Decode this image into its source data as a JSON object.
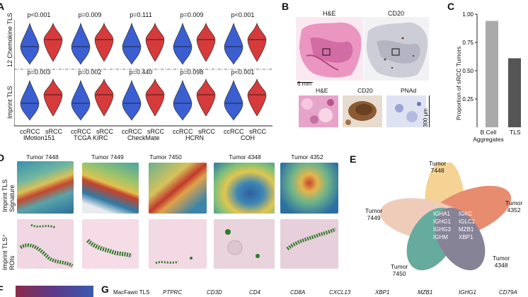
{
  "panels": {
    "a": "A",
    "b": "B",
    "c": "C",
    "d": "D",
    "e": "E",
    "f": "F",
    "g": "G"
  },
  "panel_a": {
    "row_labels": [
      "12 Chemokine TLS",
      "Imprint TLS"
    ],
    "groups": [
      {
        "name": "IMotion151",
        "ccrcc": "ccRCC",
        "srcc": "sRCC"
      },
      {
        "name": "TCGA KIRC",
        "ccrcc": "ccRCC",
        "srcc": "sRCC"
      },
      {
        "name": "CheckMate",
        "ccrcc": "ccRCC",
        "srcc": "sRCC"
      },
      {
        "name": "HCRN",
        "ccrcc": "ccRCC",
        "srcc": "sRCC"
      },
      {
        "name": "COH",
        "ccrcc": "ccRCC",
        "srcc": "sRCC"
      }
    ],
    "pvalues_top": [
      "p<0.001",
      "p=0.009",
      "p=0.111",
      "p=0.009",
      "p<0.001"
    ],
    "pvalues_bottom": [
      "p=0.003",
      "p=0.002",
      "p=0.440",
      "p=0.098",
      "p<0.001"
    ],
    "colors": {
      "ccrcc": "#3b5fd0",
      "srcc": "#d63a3a"
    }
  },
  "panel_b": {
    "he_label": "H&E",
    "cd20_label": "CD20",
    "scale_left": "6 mm",
    "inset_he": "H&E",
    "inset_cd20": "CD20",
    "inset_pnad": "PNAd",
    "scale_right": "300 μm"
  },
  "panel_c": {
    "chart_data": {
      "type": "bar",
      "categories": [
        "B Cell Aggregates",
        "TLS"
      ],
      "values": [
        0.94,
        0.61
      ],
      "ylabel": "Proportion of sRCC Tumors",
      "ylim": [
        0,
        1.0
      ],
      "yticks": [
        "0.25",
        "0.50",
        "0.75",
        "1.00"
      ],
      "colors": [
        "#aaaaaa",
        "#555555"
      ]
    },
    "cat1_line1": "B Cell",
    "cat1_line2": "Aggregates",
    "cat2": "TLS"
  },
  "panel_d": {
    "tumors": [
      "Tumor 7448",
      "Tumor 7449",
      "Tumor 7450",
      "Tumor 4348",
      "Tumor 4352"
    ],
    "row1_label_line1": "Imprint TLS",
    "row1_label_line2": "Signature",
    "row2_label_line1": "Imprint TLS⁺",
    "row2_label_line2": "ROIs"
  },
  "panel_e": {
    "labels": {
      "t7448_l1": "Tumor",
      "t7448_l2": "7448",
      "t4352_l1": "Tumor",
      "t4352_l2": "4352",
      "t7449_l1": "Tumor",
      "t7449_l2": "7449",
      "t7450_l1": "Tumor",
      "t7450_l2": "7450",
      "t4348_l1": "Tumor",
      "t4348_l2": "4348"
    },
    "genes_left": [
      "IGHA1",
      "IGHG1",
      "IGHG3",
      "IGHM"
    ],
    "genes_right": [
      "IGKC",
      "IGLC1",
      "MZB1",
      "XBP1"
    ],
    "colors": {
      "7448": "#f2c36b",
      "4352": "#e0603a",
      "7449": "#e9b9a0",
      "7450": "#2e8c7a",
      "4348": "#5a5470"
    }
  },
  "panel_g": {
    "headers": [
      "MacFawn TLS",
      "PTPRC",
      "CD3D",
      "CD4",
      "CD8A",
      "CXCL13",
      "XBP1",
      "MZB1",
      "IGHG1",
      "CD79A"
    ]
  }
}
